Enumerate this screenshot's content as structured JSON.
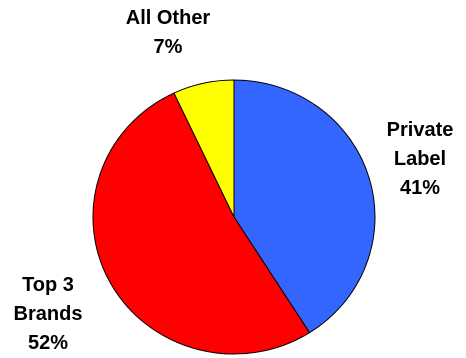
{
  "chart_data": {
    "type": "pie",
    "slices": [
      {
        "label": "Private Label",
        "value": 41,
        "text": "41%",
        "color": "#3366ff"
      },
      {
        "label": "Top 3 Brands",
        "value": 52,
        "text": "52%",
        "color": "#ff0000"
      },
      {
        "label": "All Other",
        "value": 7,
        "text": "7%",
        "color": "#ffff00"
      }
    ],
    "label_lines": {
      "private": [
        "Private",
        "Label"
      ],
      "top3": [
        "Top 3",
        "Brands"
      ],
      "other": [
        "All Other"
      ]
    }
  }
}
